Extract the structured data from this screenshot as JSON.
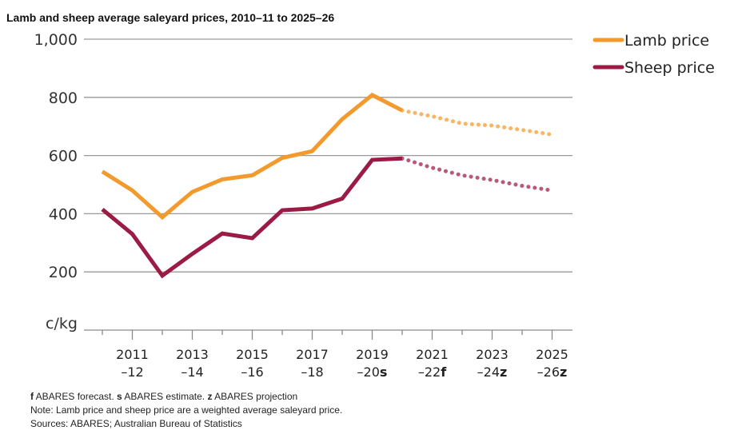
{
  "chart_data": {
    "type": "line",
    "title": "Lamb and sheep average saleyard prices, 2010–11 to 2025–26",
    "ylabel": "c/kg",
    "ylim": [
      0,
      1000
    ],
    "yticks": [
      0,
      200,
      400,
      600,
      800,
      1000
    ],
    "ytick_labels": [
      "200",
      "400",
      "600",
      "800",
      "1,000"
    ],
    "grid": true,
    "legend_position": "top-right",
    "categories": [
      "2010–11",
      "2011–12",
      "2012–13",
      "2013–14",
      "2014–15",
      "2015–16",
      "2016–17",
      "2017–18",
      "2018–19",
      "2019–20",
      "2020–21",
      "2021–22",
      "2022–23",
      "2023–24",
      "2024–25",
      "2025–26"
    ],
    "x_tick_labels": [
      {
        "line1": "2011",
        "line2": "–12",
        "suffix": ""
      },
      {
        "line1": "2013",
        "line2": "–14",
        "suffix": ""
      },
      {
        "line1": "2015",
        "line2": "–16",
        "suffix": ""
      },
      {
        "line1": "2017",
        "line2": "–18",
        "suffix": ""
      },
      {
        "line1": "2019",
        "line2": "–20",
        "suffix": "s"
      },
      {
        "line1": "2021",
        "line2": "–22",
        "suffix": "f"
      },
      {
        "line1": "2023",
        "line2": "–24",
        "suffix": "z"
      },
      {
        "line1": "2025",
        "line2": "–26",
        "suffix": "z"
      }
    ],
    "actual_through_index": 10,
    "series": [
      {
        "name": "Lamb price",
        "color": "#f39a2e",
        "values": [
          545,
          480,
          388,
          475,
          518,
          532,
          592,
          615,
          725,
          808,
          755,
          735,
          710,
          703,
          688,
          672
        ]
      },
      {
        "name": "Sheep price",
        "color": "#9b1b44",
        "values": [
          415,
          330,
          187,
          262,
          332,
          316,
          412,
          418,
          452,
          585,
          590,
          558,
          532,
          516,
          496,
          480
        ]
      }
    ],
    "notes": [
      {
        "prefix": "f",
        "text": " ABARES forecast. "
      },
      {
        "prefix": "s",
        "text": " ABARES estimate. "
      },
      {
        "prefix": "z",
        "text": " ABARES projection"
      }
    ],
    "note_line": "Note: Lamb price and sheep price are a weighted average saleyard price.",
    "sources_line": "Sources: ABARES; Australian Bureau of Statistics"
  }
}
